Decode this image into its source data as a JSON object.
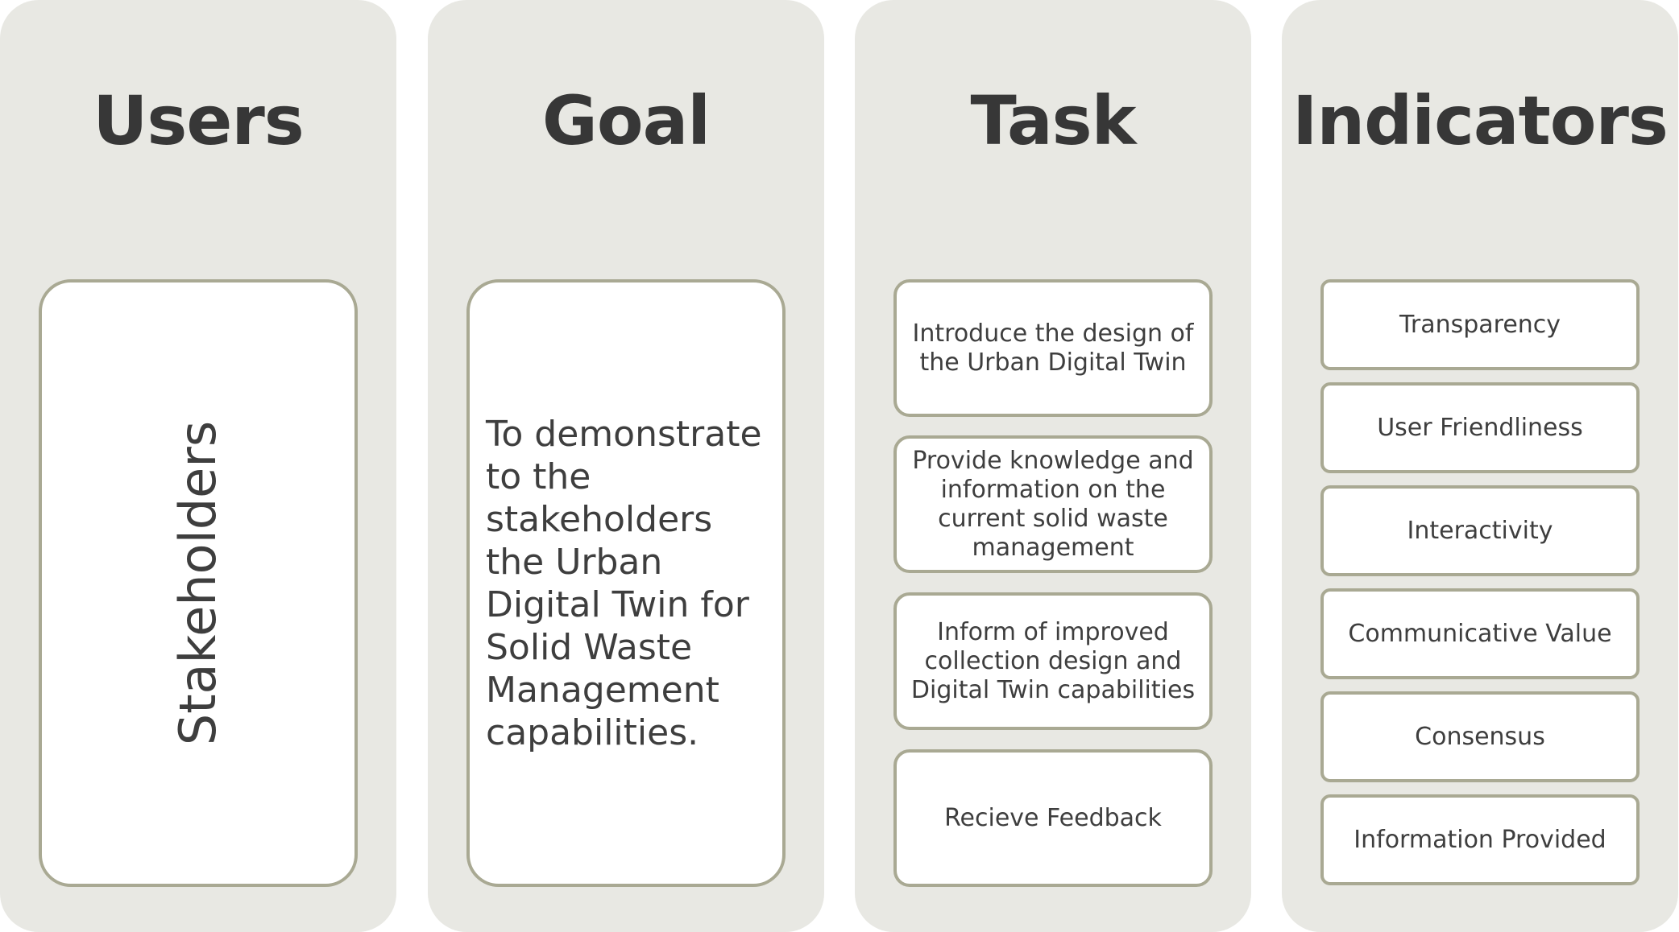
{
  "columns": [
    {
      "title": "Users",
      "items": [
        "Stakeholders"
      ]
    },
    {
      "title": "Goal",
      "items": [
        "To demonstrate to the stakeholders the Urban Digital Twin for Solid Waste Management capabilities."
      ]
    },
    {
      "title": "Task",
      "items": [
        "Introduce the design of the Urban Digital Twin",
        "Provide knowledge and information on the current solid waste management",
        "Inform of improved collection design and Digital Twin capabilities",
        "Recieve Feedback"
      ]
    },
    {
      "title": "Indicators",
      "items": [
        "Transparency",
        "User Friendliness",
        "Interactivity",
        "Communicative Value",
        "Consensus",
        "Information Provided"
      ]
    }
  ],
  "colors": {
    "column_background": "#e8e8e3",
    "box_border": "#a9a993",
    "box_background": "#ffffff",
    "title_text": "#373737",
    "body_text": "#3e3e3e"
  }
}
